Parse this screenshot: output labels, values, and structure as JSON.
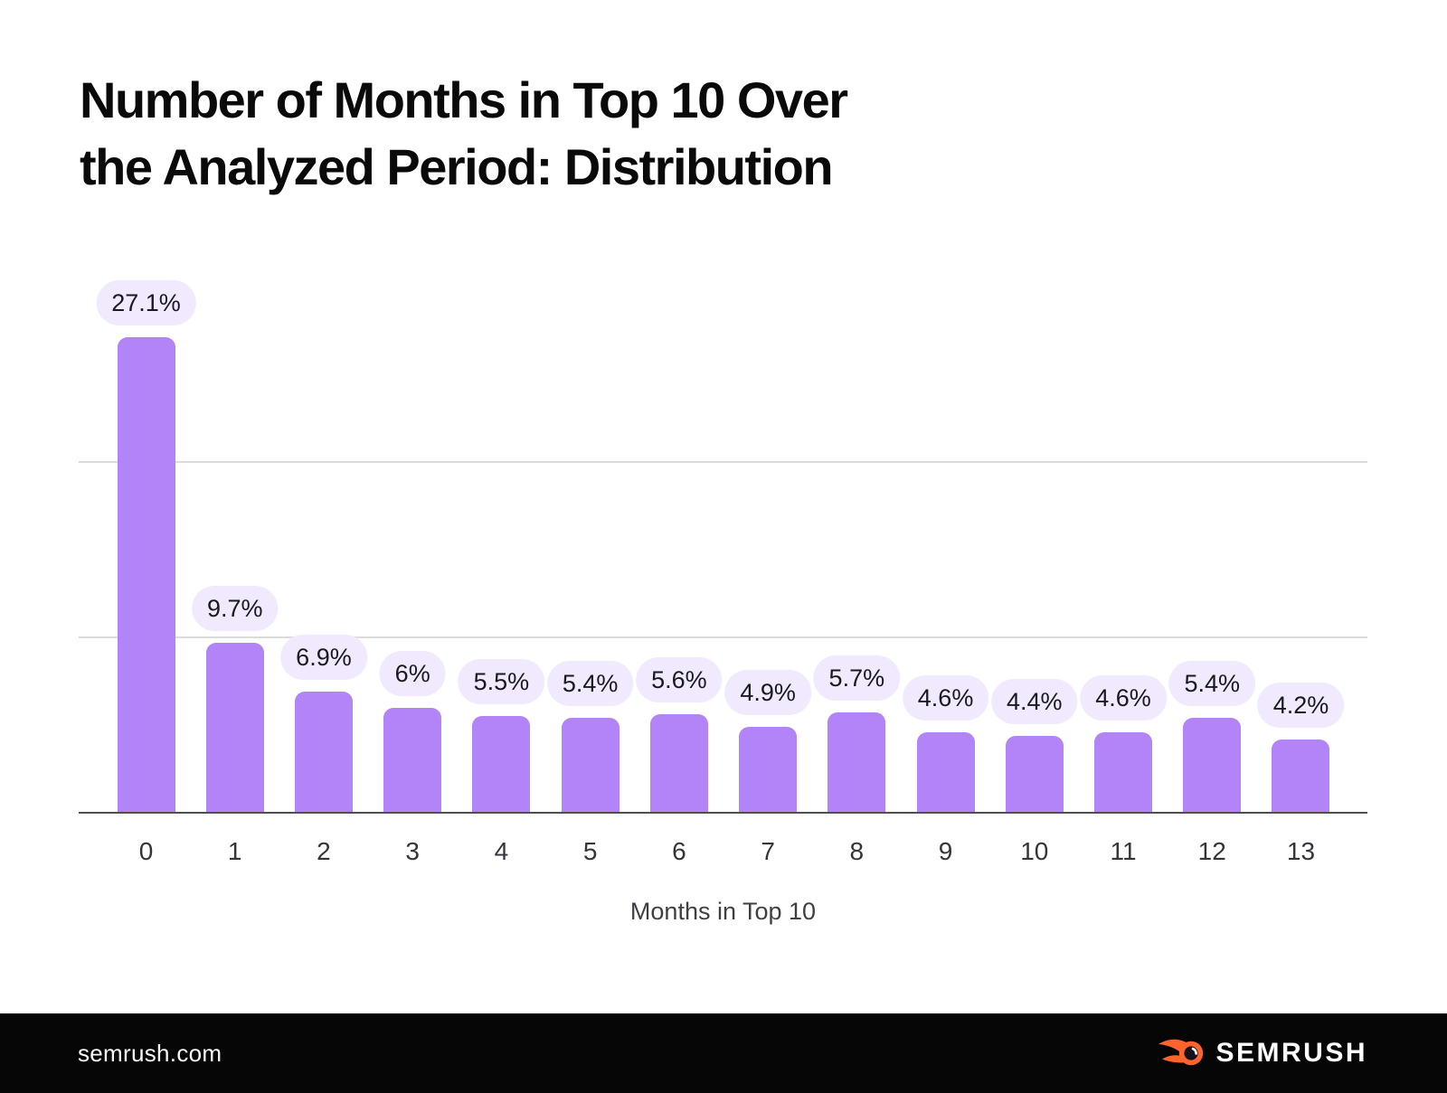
{
  "page": {
    "title_lines": [
      "Number of Months in Top 10 Over",
      "the Analyzed Period: Distribution"
    ]
  },
  "chart_data": {
    "type": "bar",
    "title": "Number of Months in Top 10 Over the Analyzed Period: Distribution",
    "xlabel": "Months in Top 10",
    "ylabel": "",
    "categories": [
      "0",
      "1",
      "2",
      "3",
      "4",
      "5",
      "6",
      "7",
      "8",
      "9",
      "10",
      "11",
      "12",
      "13"
    ],
    "values": [
      27.1,
      9.7,
      6.9,
      6,
      5.5,
      5.4,
      5.6,
      4.9,
      5.7,
      4.6,
      4.4,
      4.6,
      5.4,
      4.2
    ],
    "value_labels": [
      "27.1%",
      "9.7%",
      "6.9%",
      "6%",
      "5.5%",
      "5.4%",
      "5.6%",
      "4.9%",
      "5.7%",
      "4.6%",
      "4.4%",
      "4.6%",
      "5.4%",
      "4.2%"
    ],
    "ylim": [
      0,
      30
    ],
    "gridline_values": [
      10,
      20
    ],
    "grid": "horizontal, unlabeled",
    "legend": "none",
    "colors": {
      "bar": "#B383F8",
      "pill_bg": "#F1E9FD",
      "pill_text": "#19191e",
      "gridline": "#dbdbdb",
      "axis": "#4e4e54"
    }
  },
  "footer": {
    "site": "semrush.com",
    "brand": "SEMRUSH",
    "accent_color": "#FF642D"
  }
}
